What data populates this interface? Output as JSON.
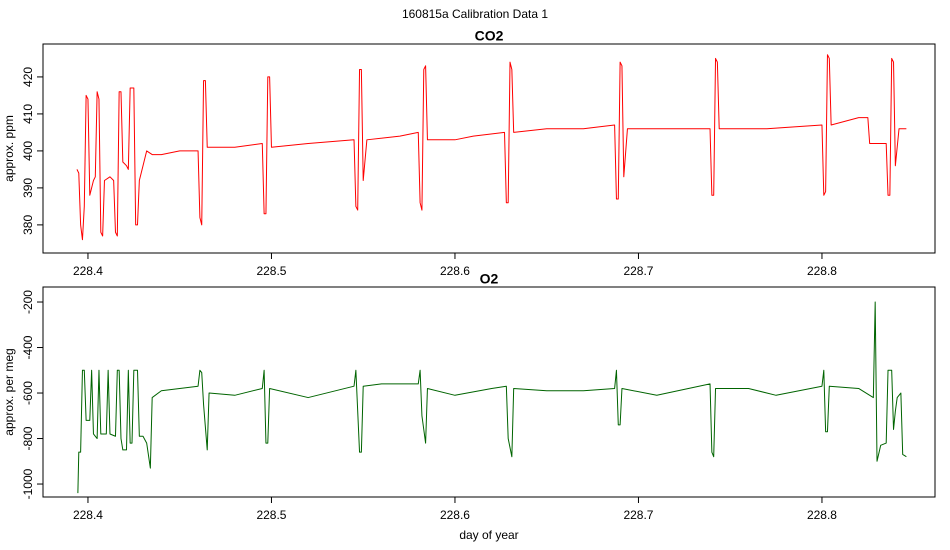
{
  "title": "160815a   Calibration Data 1",
  "chart_data": [
    {
      "type": "line",
      "title": "CO2",
      "ylabel": "approx. ppm",
      "xlim": [
        228.3755,
        228.8616
      ],
      "xticks": [
        228.4,
        228.5,
        228.6,
        228.7,
        228.8
      ],
      "ylim": [
        372.4,
        428.9
      ],
      "yticks": [
        380,
        390,
        400,
        410,
        420
      ],
      "x": [
        228.394,
        228.395,
        228.396,
        228.397,
        228.398,
        228.399,
        228.4,
        228.401,
        228.403,
        228.404,
        228.405,
        228.406,
        228.407,
        228.408,
        228.409,
        228.412,
        228.414,
        228.415,
        228.416,
        228.417,
        228.418,
        228.419,
        228.421,
        228.422,
        228.423,
        228.425,
        228.426,
        228.427,
        228.428,
        228.43,
        228.432,
        228.435,
        228.44,
        228.45,
        228.46,
        228.461,
        228.462,
        228.463,
        228.464,
        228.465,
        228.48,
        228.495,
        228.496,
        228.497,
        228.498,
        228.499,
        228.5,
        228.52,
        228.545,
        228.546,
        228.547,
        228.548,
        228.549,
        228.55,
        228.552,
        228.57,
        228.58,
        228.581,
        228.582,
        228.583,
        228.584,
        228.585,
        228.6,
        228.61,
        228.627,
        228.628,
        228.629,
        228.63,
        228.631,
        228.632,
        228.65,
        228.67,
        228.687,
        228.688,
        228.689,
        228.69,
        228.691,
        228.692,
        228.694,
        228.72,
        228.739,
        228.74,
        228.741,
        228.742,
        228.743,
        228.744,
        228.77,
        228.8,
        228.801,
        228.802,
        228.803,
        228.804,
        228.805,
        228.82,
        228.825,
        228.826,
        228.835,
        228.836,
        228.837,
        228.838,
        228.839,
        228.84,
        228.842,
        228.846
      ],
      "series": [
        {
          "name": "CO2",
          "color": "#ff0000",
          "values": [
            395,
            394,
            380,
            376,
            385,
            415,
            414,
            388,
            392,
            393,
            416,
            414,
            378,
            377,
            392,
            393,
            392,
            378,
            377,
            416,
            416,
            397,
            396,
            395,
            417,
            417,
            380,
            380,
            392,
            396,
            400,
            399,
            399,
            400,
            400,
            382,
            380,
            419,
            419,
            401,
            401,
            402,
            383,
            383,
            420,
            420,
            401,
            402,
            403,
            385,
            384,
            422,
            422,
            392,
            403,
            404,
            405,
            386,
            384,
            422,
            423,
            403,
            403,
            404,
            405,
            386,
            386,
            424,
            422,
            405,
            406,
            406,
            407,
            387,
            387,
            424,
            423,
            393,
            406,
            406,
            406,
            388,
            388,
            425,
            424,
            406,
            406,
            407,
            388,
            389,
            426,
            425,
            407,
            409,
            409,
            402,
            402,
            388,
            388,
            425,
            424,
            396,
            406,
            406
          ]
        }
      ]
    },
    {
      "type": "line",
      "title": "O2",
      "ylabel": "approx. per meg",
      "xlabel": "day of year",
      "xlim": [
        228.3755,
        228.8616
      ],
      "xticks": [
        228.4,
        228.5,
        228.6,
        228.7,
        228.8
      ],
      "ylim": [
        -1057,
        -134
      ],
      "yticks": [
        -200,
        -400,
        -600,
        -800,
        -1000
      ],
      "x": [
        228.3945,
        228.395,
        228.396,
        228.397,
        228.398,
        228.399,
        228.401,
        228.402,
        228.403,
        228.405,
        228.406,
        228.407,
        228.41,
        228.411,
        228.412,
        228.415,
        228.416,
        228.417,
        228.418,
        228.419,
        228.421,
        228.422,
        228.423,
        228.424,
        228.425,
        228.427,
        228.428,
        228.43,
        228.432,
        228.434,
        228.435,
        228.44,
        228.45,
        228.46,
        228.461,
        228.462,
        228.463,
        228.465,
        228.466,
        228.48,
        228.495,
        228.496,
        228.497,
        228.498,
        228.499,
        228.52,
        228.545,
        228.546,
        228.547,
        228.548,
        228.549,
        228.55,
        228.56,
        228.58,
        228.581,
        228.582,
        228.584,
        228.585,
        228.6,
        228.62,
        228.628,
        228.629,
        228.631,
        228.632,
        228.65,
        228.67,
        228.687,
        228.688,
        228.689,
        228.69,
        228.691,
        228.71,
        228.739,
        228.74,
        228.741,
        228.742,
        228.76,
        228.775,
        228.8,
        228.801,
        228.802,
        228.803,
        228.804,
        228.82,
        228.828,
        228.829,
        228.83,
        228.832,
        228.835,
        228.836,
        228.838,
        228.839,
        228.84,
        228.841,
        228.843,
        228.844,
        228.846
      ],
      "series": [
        {
          "name": "O2",
          "color": "#006400",
          "values": [
            -1040,
            -860,
            -860,
            -500,
            -500,
            -720,
            -720,
            -500,
            -780,
            -800,
            -500,
            -780,
            -780,
            -500,
            -780,
            -790,
            -500,
            -500,
            -800,
            -850,
            -850,
            -500,
            -820,
            -820,
            -500,
            -500,
            -790,
            -790,
            -820,
            -930,
            -620,
            -590,
            -580,
            -570,
            -500,
            -510,
            -650,
            -850,
            -600,
            -610,
            -580,
            -500,
            -820,
            -820,
            -580,
            -620,
            -570,
            -500,
            -680,
            -860,
            -860,
            -570,
            -560,
            -560,
            -500,
            -700,
            -820,
            -580,
            -610,
            -580,
            -570,
            -800,
            -880,
            -580,
            -590,
            -590,
            -580,
            -500,
            -740,
            -740,
            -580,
            -610,
            -560,
            -860,
            -880,
            -580,
            -580,
            -610,
            -570,
            -500,
            -770,
            -770,
            -570,
            -580,
            -620,
            -200,
            -900,
            -830,
            -820,
            -500,
            -500,
            -760,
            -680,
            -620,
            -600,
            -870,
            -880
          ]
        }
      ]
    }
  ]
}
